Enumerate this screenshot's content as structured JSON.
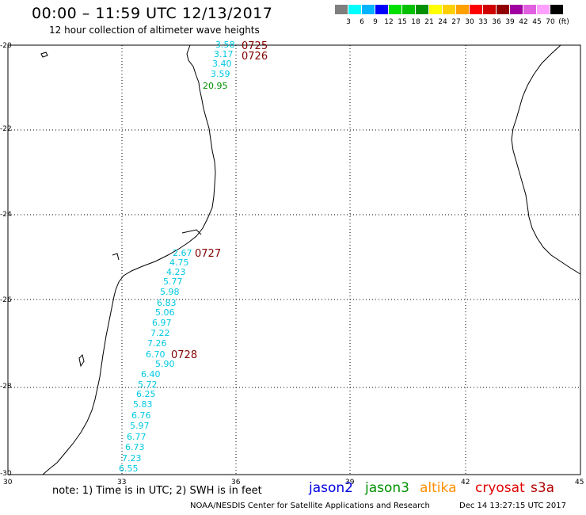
{
  "title": "00:00 – 11:59 UTC 12/13/2017",
  "subtitle": "12 hour collection of altimeter wave heights",
  "legend": {
    "colors": [
      "#7f7f7f",
      "#00ffff",
      "#00b4ff",
      "#0000ff",
      "#00e000",
      "#00c000",
      "#009000",
      "#ffff00",
      "#ffd000",
      "#ffa000",
      "#ff0000",
      "#d00000",
      "#900000",
      "#a000a0",
      "#e060e0",
      "#ffa0ff",
      "#000000"
    ],
    "labels": [
      "3",
      "6",
      "9",
      "12",
      "15",
      "18",
      "21",
      "24",
      "27",
      "30",
      "33",
      "36",
      "39",
      "42",
      "45",
      "70",
      "(ft)"
    ]
  },
  "map": {
    "lat_labels": [
      "-20",
      "-22",
      "-24",
      "-26",
      "-28",
      "-30"
    ],
    "lon_labels": [
      "30",
      "33",
      "36",
      "39",
      "42",
      "45"
    ]
  },
  "observations": [
    {
      "v": "3.58",
      "c": "#00c8e0"
    },
    {
      "v": "3.17",
      "c": "#00c8e0"
    },
    {
      "v": "3.40",
      "c": "#00c8e0"
    },
    {
      "v": "3.59",
      "c": "#00c8e0"
    },
    {
      "v": "20.95",
      "c": "#009000"
    },
    {
      "v": "2.67",
      "c": "#00c8e0"
    },
    {
      "v": "4.75",
      "c": "#00c8e0"
    },
    {
      "v": "4.23",
      "c": "#00c8e0"
    },
    {
      "v": "5.77",
      "c": "#00c8e0"
    },
    {
      "v": "5.98",
      "c": "#00c8e0"
    },
    {
      "v": "6.83",
      "c": "#00c8e0"
    },
    {
      "v": "5.06",
      "c": "#00c8e0"
    },
    {
      "v": "6.97",
      "c": "#00c8e0"
    },
    {
      "v": "7.22",
      "c": "#00c8e0"
    },
    {
      "v": "7.26",
      "c": "#00c8e0"
    },
    {
      "v": "6.70",
      "c": "#00c8e0"
    },
    {
      "v": "5.90",
      "c": "#00c8e0"
    },
    {
      "v": "6.40",
      "c": "#00c8e0"
    },
    {
      "v": "5.72",
      "c": "#00c8e0"
    },
    {
      "v": "6.25",
      "c": "#00c8e0"
    },
    {
      "v": "5.83",
      "c": "#00c8e0"
    },
    {
      "v": "6.76",
      "c": "#00c8e0"
    },
    {
      "v": "5.97",
      "c": "#00c8e0"
    },
    {
      "v": "6.77",
      "c": "#00c8e0"
    },
    {
      "v": "6.73",
      "c": "#00c8e0"
    },
    {
      "v": "7.23",
      "c": "#00c8e0"
    },
    {
      "v": "6.55",
      "c": "#00c8e0"
    }
  ],
  "times": [
    "0725",
    "0726",
    "0727",
    "0728"
  ],
  "time_color": "#800000",
  "note": "note: 1) Time is in UTC; 2) SWH is in feet",
  "satellites": [
    {
      "name": "jason2",
      "color": "#0000e0"
    },
    {
      "name": "jason3",
      "color": "#009000"
    },
    {
      "name": "altika",
      "color": "#ff9000"
    },
    {
      "name": "cryosat",
      "color": "#e00000"
    },
    {
      "name": "s3a",
      "color": "#b00000"
    }
  ],
  "footer_left": "NOAA/NESDIS Center for Satellite Applications and Research",
  "footer_right": "Dec 14 13:27:15 UTC 2017"
}
